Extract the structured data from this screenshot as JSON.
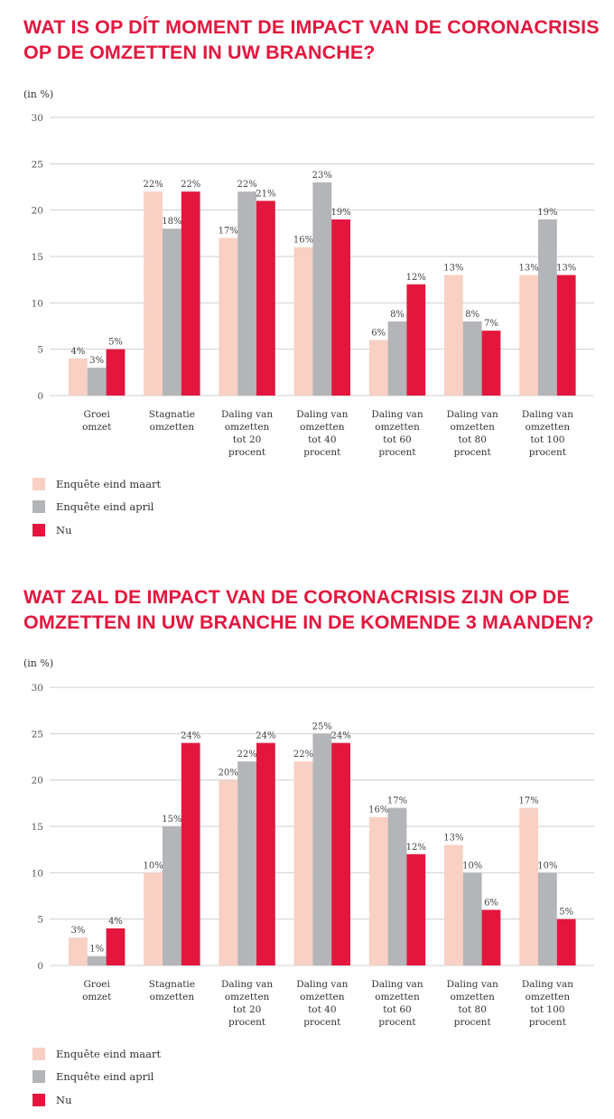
{
  "charts": [
    {
      "title_line1": "WAT IS OP DÍT MOMENT DE IMPACT VAN DE CORONACRISIS",
      "title_line2": "OP DE OMZETTEN IN UW BRANCHE?",
      "unit_label": "(in %)",
      "legend": [
        "Enquête eind maart",
        "Enquête eind april",
        "Nu"
      ]
    },
    {
      "title_line1": "WAT ZAL DE IMPACT VAN DE CORONACRISIS ZIJN OP DE",
      "title_line2": "OMZETTEN IN UW BRANCHE IN DE KOMENDE 3 MAANDEN?",
      "unit_label": "(in %)",
      "legend": [
        "Enquête eind maart",
        "Enquête eind april",
        "Nu"
      ]
    }
  ],
  "colors": {
    "title": "#e3173e",
    "series": [
      "#f8d0c4",
      "#b4b5b8",
      "#e3173e"
    ],
    "grid": "#cfcfcf"
  },
  "chart_data": [
    {
      "type": "bar",
      "title": "WAT IS OP DÍT MOMENT DE IMPACT VAN DE CORONACRISIS OP DE OMZETTEN IN UW BRANCHE?",
      "ylabel": "(in %)",
      "ylim": [
        0,
        30
      ],
      "yticks": [
        0,
        5,
        10,
        15,
        20,
        25,
        30
      ],
      "grid": true,
      "legend_position": "bottom-left",
      "categories": [
        [
          "Groei",
          "omzet"
        ],
        [
          "Stagnatie",
          "omzetten"
        ],
        [
          "Daling van",
          "omzetten",
          "tot 20",
          "procent"
        ],
        [
          "Daling van",
          "omzetten",
          "tot 40",
          "procent"
        ],
        [
          "Daling van",
          "omzetten",
          "tot 60",
          "procent"
        ],
        [
          "Daling van",
          "omzetten",
          "tot 80",
          "procent"
        ],
        [
          "Daling van",
          "omzetten",
          "tot 100",
          "procent"
        ]
      ],
      "series": [
        {
          "name": "Enquête eind maart",
          "values": [
            4,
            22,
            17,
            16,
            6,
            13,
            13
          ],
          "labels": [
            "4%",
            "22%",
            "17%",
            "16%",
            "6%",
            "13%",
            "13%"
          ]
        },
        {
          "name": "Enquête eind april",
          "values": [
            3,
            18,
            22,
            23,
            8,
            8,
            19
          ],
          "labels": [
            "3%",
            "18%",
            "22%",
            "23%",
            "8%",
            "8%",
            "19%"
          ]
        },
        {
          "name": "Nu",
          "values": [
            5,
            22,
            21,
            19,
            12,
            7,
            13
          ],
          "labels": [
            "5%",
            "22%",
            "21%",
            "19%",
            "12%",
            "7%",
            "13%"
          ]
        }
      ]
    },
    {
      "type": "bar",
      "title": "WAT ZAL DE IMPACT VAN DE CORONACRISIS ZIJN OP DE OMZETTEN IN UW BRANCHE IN DE KOMENDE 3 MAANDEN?",
      "ylabel": "(in %)",
      "ylim": [
        0,
        30
      ],
      "yticks": [
        0,
        5,
        10,
        15,
        20,
        25,
        30
      ],
      "grid": true,
      "legend_position": "bottom-left",
      "categories": [
        [
          "Groei",
          "omzet"
        ],
        [
          "Stagnatie",
          "omzetten"
        ],
        [
          "Daling van",
          "omzetten",
          "tot 20",
          "procent"
        ],
        [
          "Daling van",
          "omzetten",
          "tot 40",
          "procent"
        ],
        [
          "Daling van",
          "omzetten",
          "tot 60",
          "procent"
        ],
        [
          "Daling van",
          "omzetten",
          "tot 80",
          "procent"
        ],
        [
          "Daling van",
          "omzetten",
          "tot 100",
          "procent"
        ]
      ],
      "series": [
        {
          "name": "Enquête eind maart",
          "values": [
            3,
            10,
            20,
            22,
            16,
            13,
            17
          ],
          "labels": [
            "3%",
            "10%",
            "20%",
            "22%",
            "16%",
            "13%",
            "17%"
          ]
        },
        {
          "name": "Enquête eind april",
          "values": [
            1,
            15,
            22,
            25,
            17,
            10,
            10
          ],
          "labels": [
            "1%",
            "15%",
            "22%",
            "25%",
            "17%",
            "10%",
            "10%"
          ]
        },
        {
          "name": "Nu",
          "values": [
            4,
            24,
            24,
            24,
            12,
            6,
            5
          ],
          "labels": [
            "4%",
            "24%",
            "24%",
            "24%",
            "12%",
            "6%",
            "5%"
          ]
        }
      ]
    }
  ]
}
